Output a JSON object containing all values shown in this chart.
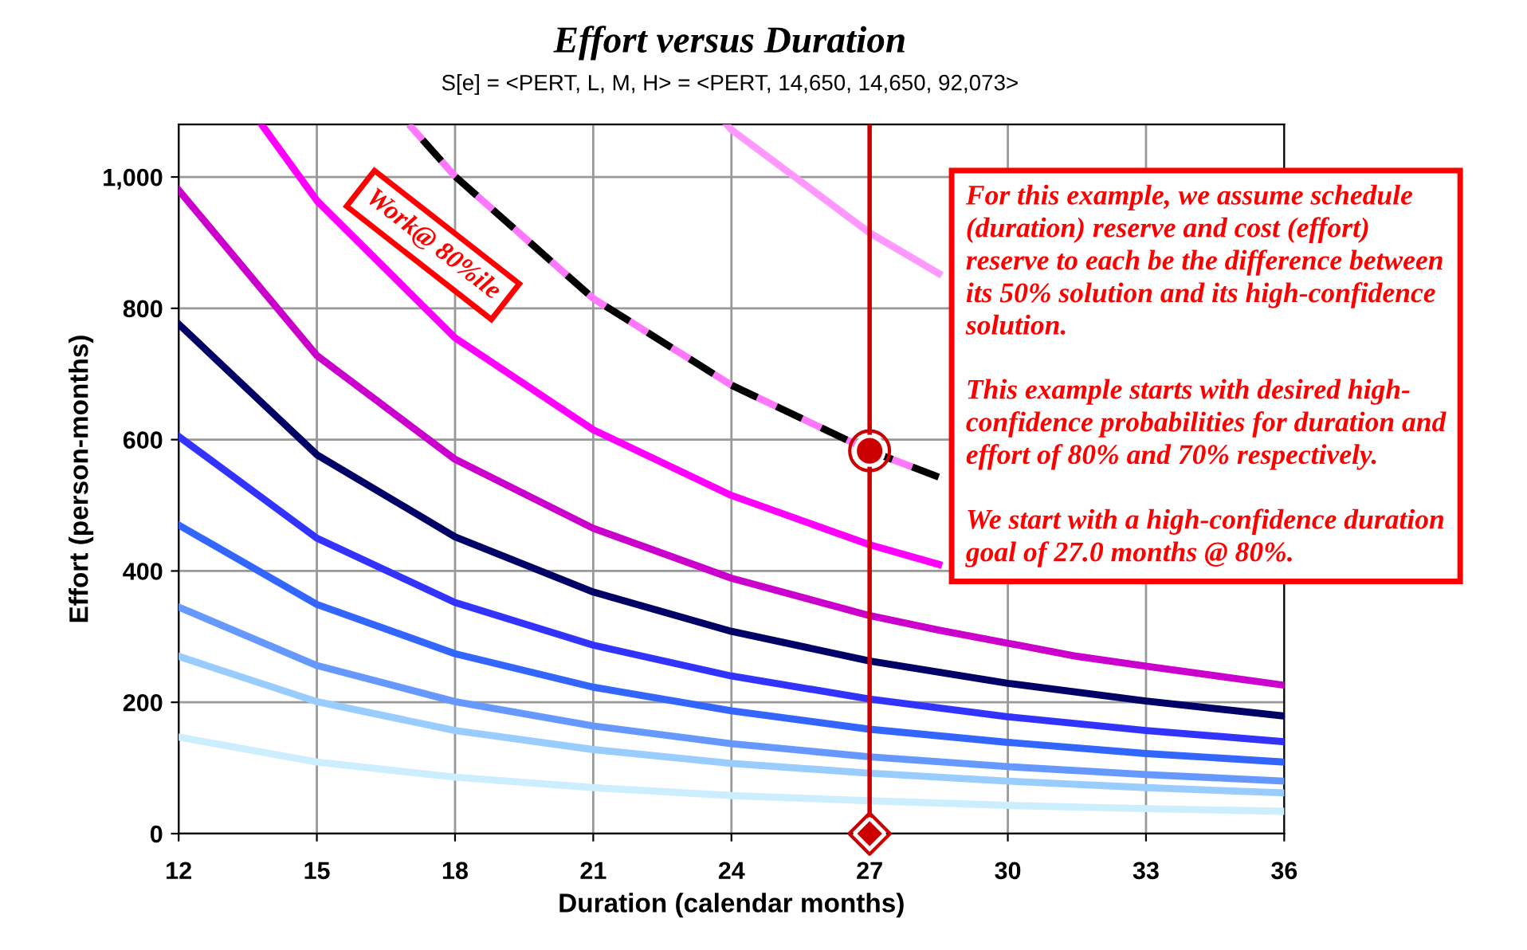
{
  "chart_data": {
    "type": "line",
    "title": "Effort versus Duration",
    "subtitle": "S[e] = <PERT, L, M, H> = <PERT, 14,650, 14,650, 92,073>",
    "xlabel": "Duration (calendar months)",
    "ylabel": "Effort (person-months)",
    "x": [
      12,
      15,
      18,
      21,
      24,
      27,
      30,
      33,
      36
    ],
    "series": [
      {
        "color": "#cceeff",
        "values": [
          147,
          109,
          86,
          70,
          58,
          50,
          43,
          38,
          34
        ]
      },
      {
        "color": "#99ccff",
        "values": [
          270,
          201,
          157,
          128,
          107,
          92,
          80,
          70,
          62
        ]
      },
      {
        "color": "#6699ff",
        "values": [
          345,
          256,
          201,
          164,
          137,
          117,
          102,
          90,
          80
        ]
      },
      {
        "color": "#3366ff",
        "values": [
          470,
          349,
          274,
          223,
          187,
          159,
          139,
          122,
          109
        ]
      },
      {
        "color": "#3333ff",
        "values": [
          605,
          450,
          352,
          287,
          240,
          205,
          178,
          157,
          140
        ]
      },
      {
        "color": "#000066",
        "values": [
          776,
          577,
          452,
          368,
          308,
          263,
          229,
          202,
          179
        ]
      },
      {
        "color": "#cc00cc",
        "x": [
          12,
          15,
          18,
          21,
          24,
          27,
          28.5,
          31.5,
          33,
          36
        ],
        "values": [
          980,
          728,
          570,
          465,
          389,
          332,
          310,
          270,
          255,
          226
        ]
      },
      {
        "color": "#ff00ff",
        "x": [
          13.8,
          15,
          18,
          21,
          24,
          27,
          28.5
        ],
        "values": [
          1080,
          964,
          755,
          615,
          515,
          440,
          410
        ]
      },
      {
        "color": "#000000",
        "line_style": "dashed",
        "x": [
          17,
          18,
          21,
          24,
          27,
          28.5
        ],
        "values": [
          1080,
          1001,
          815,
          683,
          583,
          543
        ]
      },
      {
        "color": "#ff99ff",
        "x": [
          23.9,
          24,
          27,
          28.5
        ],
        "values": [
          1080,
          1072,
          915,
          853
        ]
      },
      {
        "type": "scatter",
        "marker": "circle",
        "color": "#cc0000",
        "x": [
          27
        ],
        "values": [
          583
        ]
      },
      {
        "type": "scatter",
        "marker": "diamond",
        "color": "#cc0000",
        "x": [
          27
        ],
        "values": [
          0
        ]
      }
    ],
    "ref_lines": [
      {
        "axis": "x",
        "value": 27,
        "color": "#cc0000"
      }
    ],
    "xlim": [
      12,
      36
    ],
    "xticks": [
      12,
      15,
      18,
      21,
      24,
      27,
      30,
      33,
      36
    ],
    "ylim": [
      0,
      1080
    ],
    "yticks": [
      0,
      {
        "value": 200,
        "label": "200"
      },
      {
        "value": 400,
        "label": "400"
      },
      {
        "value": 600,
        "label": "600"
      },
      {
        "value": 800,
        "label": "800"
      },
      {
        "value": 1000,
        "label": "1,000"
      }
    ],
    "grid": true,
    "annotations": [
      "Work@ 80%ile",
      "For this example, we assume schedule\n(duration) reserve and cost (effort)\nreserve to each be the difference between\nits 50% solution and its high-confidence\nsolution.\n\nThis example starts with desired high-\nconfidence probabilities for duration and\neffort of 80% and 70% respectively.\n\nWe start with a high-confidence duration\ngoal of 27.0 months @ 80%."
    ]
  }
}
